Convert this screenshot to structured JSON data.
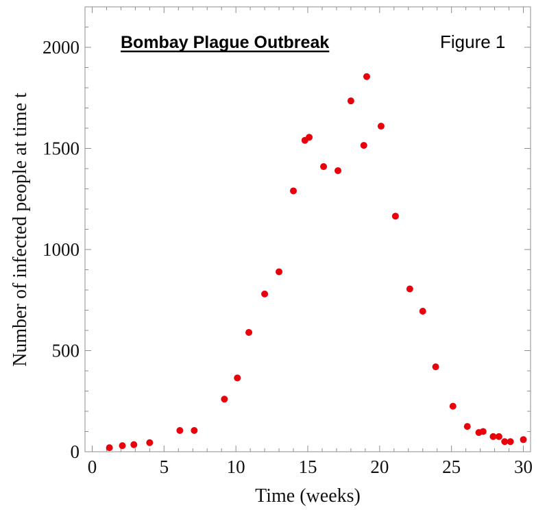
{
  "chart_data": {
    "type": "scatter",
    "title": "Bombay Plague Outbreak",
    "figure_label": "Figure 1",
    "xlabel": "Time (weeks)",
    "ylabel": "Number of infected people at time t",
    "xlim": [
      -0.5,
      30.5
    ],
    "ylim": [
      0,
      2200
    ],
    "x_ticks": [
      0,
      5,
      10,
      15,
      20,
      25,
      30
    ],
    "y_ticks": [
      0,
      500,
      1000,
      1500,
      2000
    ],
    "grid": false,
    "point_color": "#e8000b",
    "series": [
      {
        "x": [
          1.2,
          2.1,
          2.9,
          4.0,
          6.1,
          7.1,
          9.2,
          10.1,
          10.9,
          12.0,
          13.0,
          14.0,
          14.8,
          15.1,
          16.1,
          17.1,
          18.0,
          18.9,
          19.1,
          20.1,
          21.1,
          22.1,
          23.0,
          23.9,
          25.1,
          26.1,
          26.9,
          27.2,
          27.9,
          28.3,
          28.7,
          29.1,
          30.0
        ],
        "y": [
          20,
          30,
          35,
          45,
          105,
          105,
          260,
          365,
          590,
          780,
          890,
          1290,
          1540,
          1555,
          1410,
          1390,
          1735,
          1515,
          1855,
          1610,
          1165,
          805,
          695,
          420,
          225,
          125,
          95,
          100,
          75,
          75,
          50,
          50,
          60
        ]
      }
    ]
  }
}
